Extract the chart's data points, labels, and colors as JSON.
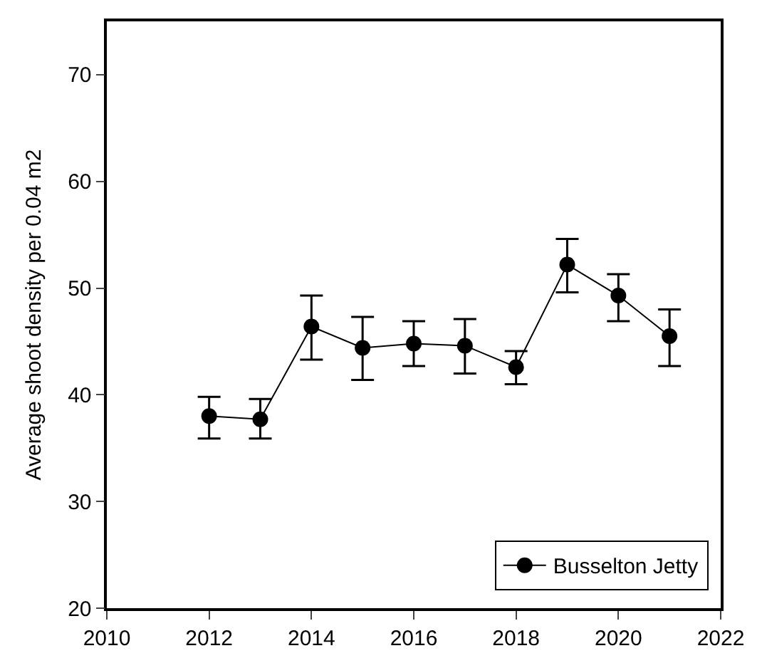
{
  "chart_data": {
    "type": "line",
    "ylabel": "Average shoot density per 0.04 m2",
    "x": [
      2012,
      2013,
      2014,
      2015,
      2016,
      2017,
      2018,
      2019,
      2020,
      2021
    ],
    "series": [
      {
        "name": "Busselton Jetty",
        "color": "#000000",
        "values": [
          38.0,
          37.7,
          46.4,
          44.4,
          44.8,
          44.6,
          42.6,
          52.2,
          49.3,
          45.5
        ],
        "errors": [
          [
            35.9,
            39.8
          ],
          [
            35.9,
            39.6
          ],
          [
            43.3,
            49.3
          ],
          [
            41.4,
            47.3
          ],
          [
            42.7,
            46.9
          ],
          [
            42.0,
            47.1
          ],
          [
            41.0,
            44.1
          ],
          [
            49.6,
            54.6
          ],
          [
            46.9,
            51.3
          ],
          [
            42.7,
            48.0
          ]
        ]
      }
    ],
    "xlim": [
      2010,
      2022
    ],
    "xticks": [
      2010,
      2012,
      2014,
      2016,
      2018,
      2020,
      2022
    ],
    "ylim": [
      20,
      75
    ],
    "yticks": [
      20,
      30,
      40,
      50,
      60,
      70
    ],
    "legend": "bottom right",
    "marker": "circle",
    "line_style": "solid"
  }
}
